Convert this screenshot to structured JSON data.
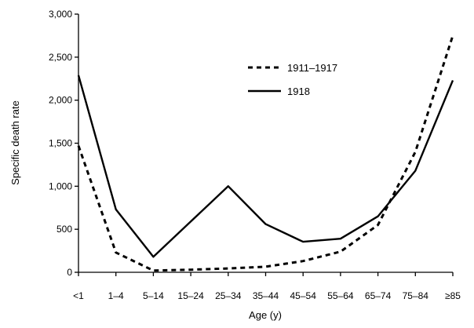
{
  "chart_data": {
    "type": "line",
    "xlabel": "Age (y)",
    "ylabel": "Specific death rate",
    "categories": [
      "<1",
      "1–4",
      "5–14",
      "15–24",
      "25–34",
      "35–44",
      "45–54",
      "55–64",
      "65–74",
      "75–84",
      "≥85"
    ],
    "ylim": [
      0,
      3000
    ],
    "yticks": [
      0,
      500,
      1000,
      1500,
      2000,
      2500,
      3000
    ],
    "ytick_labels": [
      "0",
      "500",
      "1,000",
      "1,500",
      "2,000",
      "2,500",
      "3,000"
    ],
    "grid": false,
    "legend_position": "top-right",
    "series": [
      {
        "name": "1911–1917",
        "style": "dotted",
        "color": "#000000",
        "values": [
          1470,
          230,
          20,
          30,
          45,
          65,
          130,
          240,
          550,
          1400,
          2750
        ]
      },
      {
        "name": "1918",
        "style": "solid",
        "color": "#000000",
        "values": [
          2290,
          730,
          180,
          590,
          1000,
          560,
          355,
          390,
          650,
          1180,
          2230
        ]
      }
    ]
  }
}
